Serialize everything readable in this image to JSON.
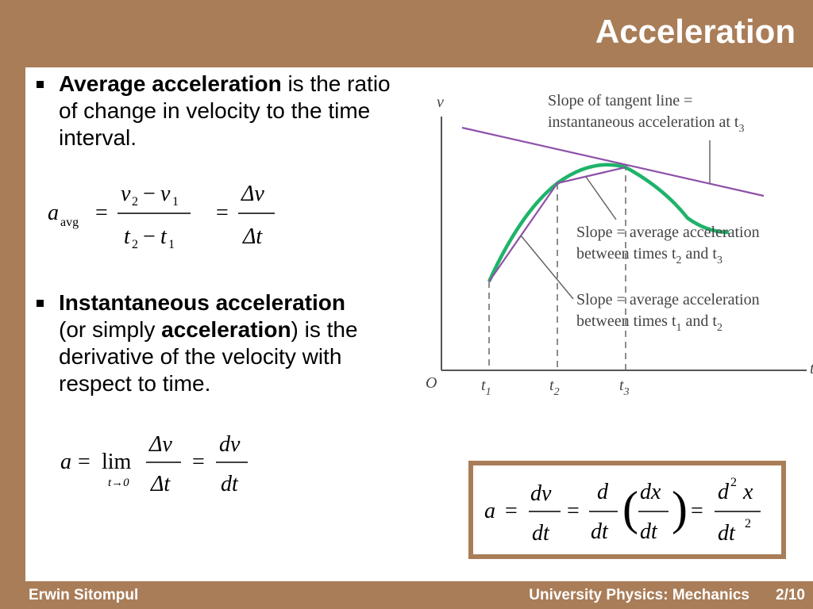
{
  "slide": {
    "title": "Acceleration",
    "footer_author": "Erwin Sitompul",
    "footer_course": "University Physics: Mechanics",
    "page_number": "2/10"
  },
  "bullets": [
    {
      "bold_1": "Average acceleration",
      "text_1": " is the ratio of change in velocity to the time interval."
    },
    {
      "bold_1": "Instantaneous acceleration",
      "text_1": " (or simply ",
      "bold_2": "acceleration",
      "text_2": ") is the derivative of the velocity with respect to time."
    }
  ],
  "equations": {
    "avg": {
      "a": "a",
      "sub": "avg",
      "v2": "v",
      "v1": "v",
      "t2": "t",
      "t1": "t",
      "two": "2",
      "one": "1",
      "delta_v": "Δv",
      "delta_t": "Δt"
    },
    "inst": {
      "a": "a",
      "lim": "lim",
      "lim_sub": "t→0",
      "delta_v": "Δv",
      "delta_t": "Δt",
      "dv": "dv",
      "dt": "dt"
    },
    "boxed": {
      "a": "a",
      "dv": "dv",
      "dt": "dt",
      "d": "d",
      "dx": "dx",
      "d2": "d",
      "x": "x",
      "sup2": "2"
    }
  },
  "figure": {
    "y_axis": "v",
    "x_axis": "t",
    "origin": "O",
    "ticks": [
      "t",
      "t",
      "t"
    ],
    "tick_subs": [
      "1",
      "2",
      "3"
    ],
    "annot_tangent": [
      "Slope of tangent line =",
      "instantaneous acceleration at t",
      "3"
    ],
    "annot_23": [
      "Slope = average acceleration",
      "between times t",
      "2",
      " and t",
      "3"
    ],
    "annot_12": [
      "Slope = average acceleration",
      "between times t",
      "1",
      " and t",
      "2"
    ],
    "colors": {
      "curve": "#1fb36a",
      "chords": "#8e52a8",
      "axes": "#555555"
    }
  }
}
